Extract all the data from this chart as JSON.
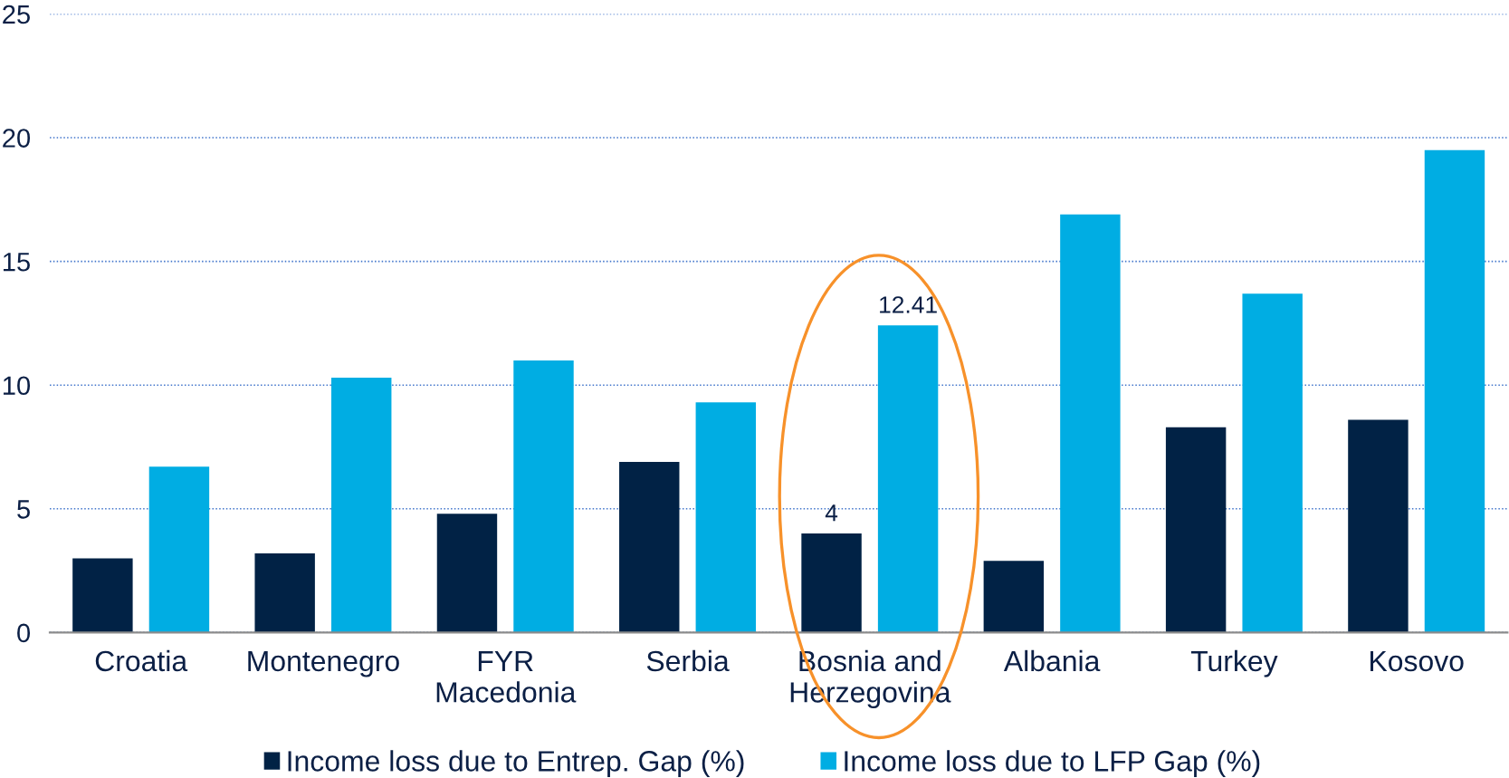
{
  "chart_data": {
    "type": "bar",
    "categories": [
      "Croatia",
      "Montenegro",
      "FYR\nMacedonia",
      "Serbia",
      "Bosnia and\nHerzegovina",
      "Albania",
      "Turkey",
      "Kosovo"
    ],
    "series": [
      {
        "name": "Income loss due to Entrep. Gap (%)",
        "color": "#012245",
        "values": [
          3.0,
          3.2,
          4.8,
          6.9,
          4,
          2.9,
          8.3,
          8.6
        ],
        "value_labels": [
          null,
          null,
          null,
          null,
          "4",
          null,
          null,
          null
        ]
      },
      {
        "name": "Income loss due to LFP Gap (%)",
        "color": "#00ADE3",
        "values": [
          6.7,
          10.3,
          11.0,
          9.3,
          12.41,
          16.9,
          13.7,
          19.5
        ],
        "value_labels": [
          null,
          null,
          null,
          null,
          "12.41",
          null,
          null,
          null
        ]
      }
    ],
    "ylim": [
      0,
      25
    ],
    "yticks": [
      0,
      5,
      10,
      15,
      20,
      25
    ],
    "grid": "y",
    "legend": "bottom"
  }
}
